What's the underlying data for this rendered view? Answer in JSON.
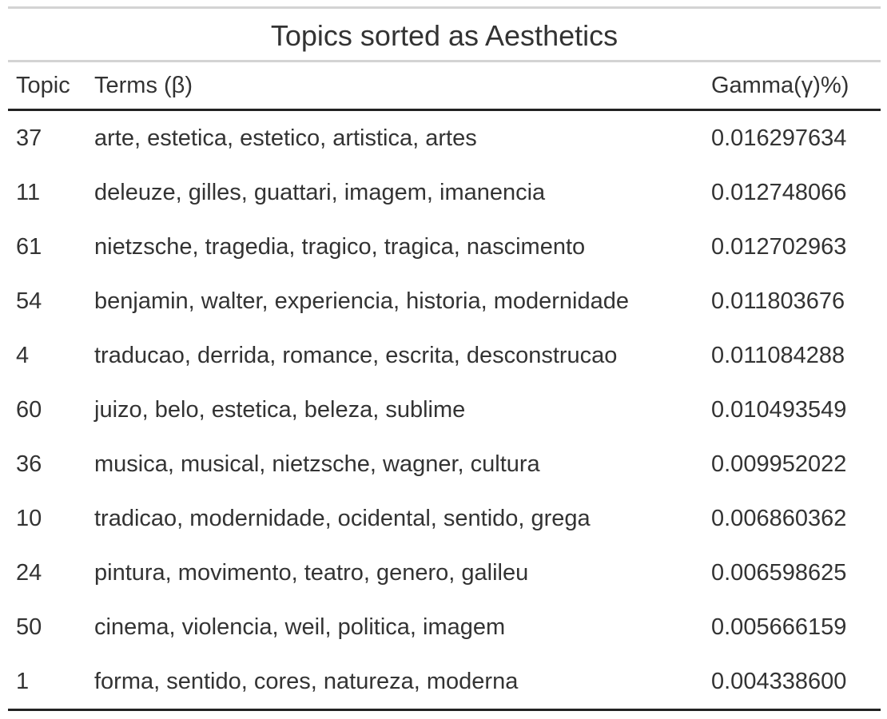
{
  "table": {
    "title": "Topics sorted as Aesthetics",
    "columns": [
      "Topic",
      "Terms (β)",
      "Gamma(γ)%)"
    ],
    "rows": [
      {
        "topic": "37",
        "terms": "arte, estetica, estetico, artistica, artes",
        "gamma": "0.016297634"
      },
      {
        "topic": "11",
        "terms": "deleuze, gilles, guattari, imagem, imanencia",
        "gamma": "0.012748066"
      },
      {
        "topic": "61",
        "terms": "nietzsche, tragedia, tragico, tragica, nascimento",
        "gamma": "0.012702963"
      },
      {
        "topic": "54",
        "terms": "benjamin, walter, experiencia, historia, modernidade",
        "gamma": "0.011803676"
      },
      {
        "topic": "4",
        "terms": "traducao, derrida, romance, escrita, desconstrucao",
        "gamma": "0.011084288"
      },
      {
        "topic": "60",
        "terms": "juizo, belo, estetica, beleza, sublime",
        "gamma": "0.010493549"
      },
      {
        "topic": "36",
        "terms": "musica, musical, nietzsche, wagner, cultura",
        "gamma": "0.009952022"
      },
      {
        "topic": "10",
        "terms": "tradicao, modernidade, ocidental, sentido, grega",
        "gamma": "0.006860362"
      },
      {
        "topic": "24",
        "terms": "pintura, movimento, teatro, genero, galileu",
        "gamma": "0.006598625"
      },
      {
        "topic": "50",
        "terms": "cinema, violencia, weil, politica, imagem",
        "gamma": "0.005666159"
      },
      {
        "topic": "1",
        "terms": "forma, sentido, cores, natureza, moderna",
        "gamma": "0.004338600"
      }
    ]
  }
}
